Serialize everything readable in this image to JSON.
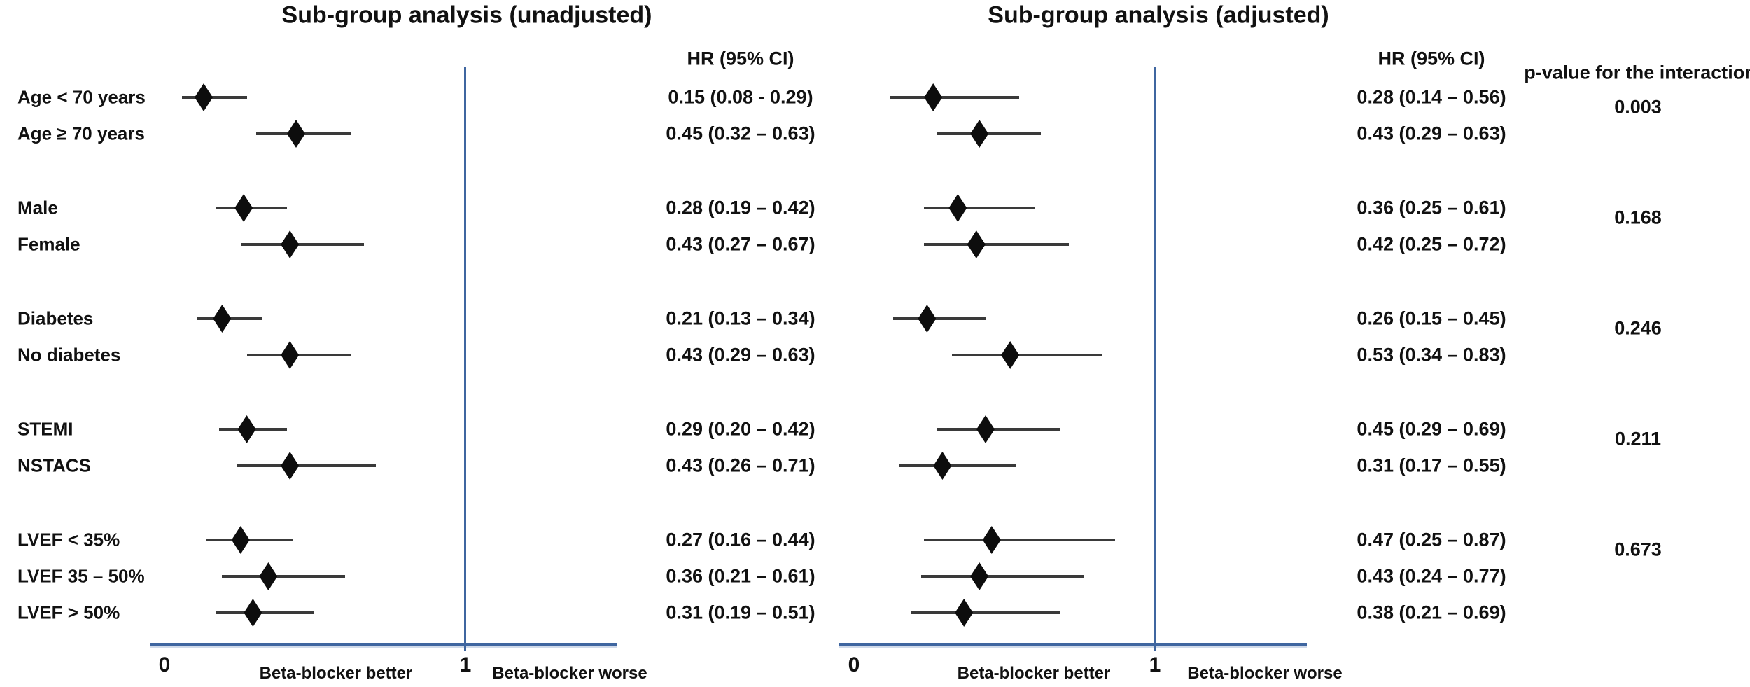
{
  "figure": {
    "p_header": "p-value for the interaction",
    "panels": [
      {
        "key": "unadjusted",
        "title": "Sub-group analysis (unadjusted)",
        "hr_header": "HR (95% CI)",
        "tick0": "0",
        "tick1": "1",
        "better_label": "Beta-blocker better",
        "worse_label": "Beta-blocker worse"
      },
      {
        "key": "adjusted",
        "title": "Sub-group analysis (adjusted)",
        "hr_header": "HR (95% CI)",
        "tick0": "0",
        "tick1": "1",
        "better_label": "Beta-blocker better",
        "worse_label": "Beta-blocker worse"
      }
    ]
  },
  "chart_data": {
    "type": "forest",
    "x_axis": {
      "ticks": [
        0,
        1
      ],
      "range_shown": [
        0,
        1.5
      ],
      "reference_line": 1
    },
    "series": [
      "unadjusted",
      "adjusted"
    ],
    "groups": [
      {
        "p_value": "0.003",
        "rows": [
          {
            "label": "Age < 70 years",
            "unadjusted": {
              "hr": 0.15,
              "ci_low": 0.08,
              "ci_high": 0.29,
              "text": "0.15 (0.08 - 0.29)"
            },
            "adjusted": {
              "hr": 0.28,
              "ci_low": 0.14,
              "ci_high": 0.56,
              "text": "0.28 (0.14 – 0.56)"
            }
          },
          {
            "label": "Age ≥ 70 years",
            "unadjusted": {
              "hr": 0.45,
              "ci_low": 0.32,
              "ci_high": 0.63,
              "text": "0.45 (0.32 – 0.63)"
            },
            "adjusted": {
              "hr": 0.43,
              "ci_low": 0.29,
              "ci_high": 0.63,
              "text": "0.43 (0.29 – 0.63)"
            }
          }
        ]
      },
      {
        "p_value": "0.168",
        "rows": [
          {
            "label": "Male",
            "unadjusted": {
              "hr": 0.28,
              "ci_low": 0.19,
              "ci_high": 0.42,
              "text": "0.28 (0.19 – 0.42)"
            },
            "adjusted": {
              "hr": 0.36,
              "ci_low": 0.25,
              "ci_high": 0.61,
              "text": "0.36 (0.25 – 0.61)"
            }
          },
          {
            "label": "Female",
            "unadjusted": {
              "hr": 0.43,
              "ci_low": 0.27,
              "ci_high": 0.67,
              "text": "0.43 (0.27 – 0.67)"
            },
            "adjusted": {
              "hr": 0.42,
              "ci_low": 0.25,
              "ci_high": 0.72,
              "text": "0.42 (0.25 – 0.72)"
            }
          }
        ]
      },
      {
        "p_value": "0.246",
        "rows": [
          {
            "label": "Diabetes",
            "unadjusted": {
              "hr": 0.21,
              "ci_low": 0.13,
              "ci_high": 0.34,
              "text": "0.21 (0.13 – 0.34)"
            },
            "adjusted": {
              "hr": 0.26,
              "ci_low": 0.15,
              "ci_high": 0.45,
              "text": "0.26 (0.15 – 0.45)"
            }
          },
          {
            "label": "No diabetes",
            "unadjusted": {
              "hr": 0.43,
              "ci_low": 0.29,
              "ci_high": 0.63,
              "text": "0.43 (0.29 – 0.63)"
            },
            "adjusted": {
              "hr": 0.53,
              "ci_low": 0.34,
              "ci_high": 0.83,
              "text": "0.53 (0.34 – 0.83)"
            }
          }
        ]
      },
      {
        "p_value": "0.211",
        "rows": [
          {
            "label": "STEMI",
            "unadjusted": {
              "hr": 0.29,
              "ci_low": 0.2,
              "ci_high": 0.42,
              "text": "0.29 (0.20 – 0.42)"
            },
            "adjusted": {
              "hr": 0.45,
              "ci_low": 0.29,
              "ci_high": 0.69,
              "text": "0.45 (0.29 – 0.69)"
            }
          },
          {
            "label": "NSTACS",
            "unadjusted": {
              "hr": 0.43,
              "ci_low": 0.26,
              "ci_high": 0.71,
              "text": "0.43 (0.26 – 0.71)"
            },
            "adjusted": {
              "hr": 0.31,
              "ci_low": 0.17,
              "ci_high": 0.55,
              "text": "0.31 (0.17 – 0.55)"
            }
          }
        ]
      },
      {
        "p_value": "0.673",
        "rows": [
          {
            "label": "LVEF < 35%",
            "unadjusted": {
              "hr": 0.27,
              "ci_low": 0.16,
              "ci_high": 0.44,
              "text": "0.27 (0.16 – 0.44)"
            },
            "adjusted": {
              "hr": 0.47,
              "ci_low": 0.25,
              "ci_high": 0.87,
              "text": "0.47 (0.25 – 0.87)"
            }
          },
          {
            "label": "LVEF 35 – 50%",
            "unadjusted": {
              "hr": 0.36,
              "ci_low": 0.21,
              "ci_high": 0.61,
              "text": "0.36 (0.21 – 0.61)"
            },
            "adjusted": {
              "hr": 0.43,
              "ci_low": 0.24,
              "ci_high": 0.77,
              "text": "0.43 (0.24 – 0.77)"
            }
          },
          {
            "label": "LVEF > 50%",
            "unadjusted": {
              "hr": 0.31,
              "ci_low": 0.19,
              "ci_high": 0.51,
              "text": "0.31 (0.19 – 0.51)"
            },
            "adjusted": {
              "hr": 0.38,
              "ci_low": 0.21,
              "ci_high": 0.69,
              "text": "0.38 (0.21 – 0.69)"
            }
          }
        ]
      }
    ]
  },
  "colors": {
    "axis_blue": "#3f66a0",
    "marker_black": "#0d0d0d",
    "ci_line": "#3a3a3a",
    "text": "#111111"
  }
}
